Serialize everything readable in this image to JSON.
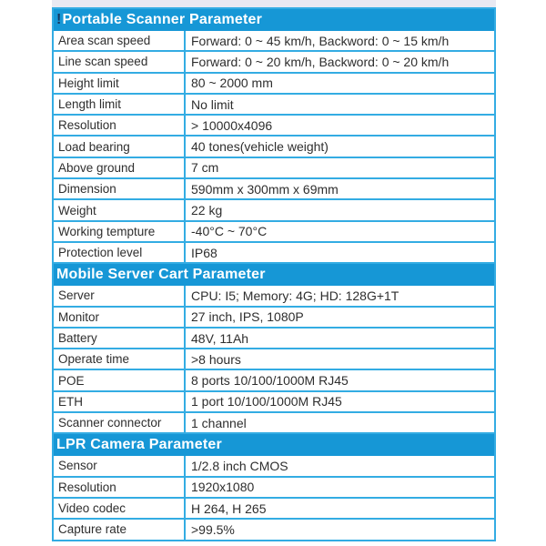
{
  "page": {
    "background": "#ffffff"
  },
  "table": {
    "colors": {
      "header_bg": "#1697d6",
      "header_fg": "#ffffff",
      "border": "#33ace3",
      "cell_fg": "#2e2e2e",
      "top_strip": "#e8e9f2",
      "prefix_mark": "#16375f"
    },
    "prefix_mark": "!",
    "sections": [
      {
        "title": "Portable Scanner Parameter",
        "rows": [
          {
            "label": "Area scan speed",
            "value": "Forward: 0 ~ 45 km/h, Backword: 0 ~ 15 km/h"
          },
          {
            "label": "Line scan speed",
            "value": "Forward: 0 ~ 20 km/h, Backword: 0 ~ 20 km/h"
          },
          {
            "label": "Height limit",
            "value": "80 ~ 2000 mm"
          },
          {
            "label": "Length limit",
            "value": "No limit"
          },
          {
            "label": "Resolution",
            "value": "> 10000x4096"
          },
          {
            "label": "Load bearing",
            "value": "40 tones(vehicle weight)"
          },
          {
            "label": "Above ground",
            "value": "7 cm"
          },
          {
            "label": "Dimension",
            "value": "590mm x 300mm x 69mm"
          },
          {
            "label": "Weight",
            "value": "22 kg"
          },
          {
            "label": "Working tempture",
            "value": "-40°C ~ 70°C"
          },
          {
            "label": "Protection level",
            "value": "IP68"
          }
        ]
      },
      {
        "title": "Mobile Server Cart Parameter",
        "rows": [
          {
            "label": "Server",
            "value": "CPU: I5; Memory: 4G; HD: 128G+1T"
          },
          {
            "label": "Monitor",
            "value": "27 inch, IPS, 1080P"
          },
          {
            "label": "Battery",
            "value": "48V, 11Ah"
          },
          {
            "label": "Operate time",
            "value": ">8 hours"
          },
          {
            "label": "POE",
            "value": "8 ports 10/100/1000M RJ45"
          },
          {
            "label": "ETH",
            "value": "1 port 10/100/1000M RJ45"
          },
          {
            "label": "Scanner connector",
            "value": "1 channel"
          }
        ]
      },
      {
        "title": "LPR Camera Parameter",
        "rows": [
          {
            "label": "Sensor",
            "value": "1/2.8 inch CMOS"
          },
          {
            "label": "Resolution",
            "value": "1920x1080"
          },
          {
            "label": "Video codec",
            "value": "H 264, H 265"
          },
          {
            "label": "Capture rate",
            "value": ">99.5%"
          }
        ]
      }
    ]
  }
}
